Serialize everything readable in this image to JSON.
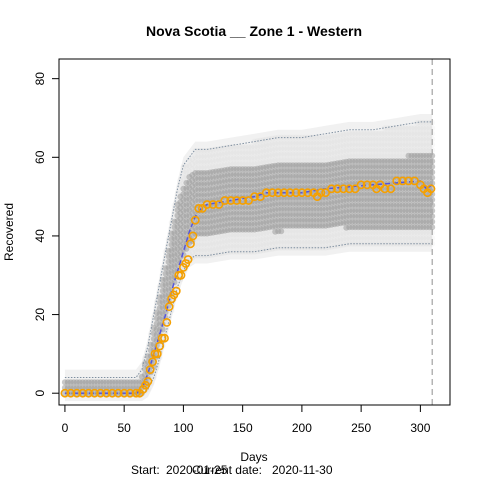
{
  "chart_data": {
    "type": "scatter",
    "title": "Nova Scotia __ Zone 1 - Western",
    "xlabel": "Days",
    "ylabel": "Recovered",
    "footer": {
      "start_label": "Start:",
      "start_date": "2020-01-25",
      "current_label": "Current date:",
      "current_date": "2020-11-30"
    },
    "xlim": [
      -5,
      325
    ],
    "ylim": [
      -3,
      85
    ],
    "x_ticks": [
      0,
      50,
      100,
      150,
      200,
      250,
      300
    ],
    "y_ticks": [
      0,
      20,
      40,
      60,
      80
    ],
    "current_day": 310,
    "colors": {
      "simulation_band": "#9a9a9a",
      "envelope": "#7f8fa0",
      "observed": "#f5a000",
      "model_fit": "#5555dd",
      "current_marker": "#aaaaaa"
    },
    "series": [
      {
        "role": "upper-envelope",
        "x": [
          0,
          60,
          65,
          70,
          75,
          80,
          85,
          90,
          95,
          100,
          105,
          110,
          120,
          140,
          160,
          180,
          200,
          220,
          240,
          260,
          280,
          300,
          310
        ],
        "y": [
          4,
          4,
          6,
          12,
          20,
          28,
          36,
          44,
          52,
          58,
          60,
          62,
          62,
          63,
          64,
          65,
          65,
          66,
          67,
          67,
          68,
          69,
          69
        ]
      },
      {
        "role": "band-top",
        "x": [
          0,
          60,
          65,
          70,
          75,
          80,
          85,
          90,
          95,
          100,
          105,
          110,
          120,
          140,
          160,
          180,
          200,
          220,
          240,
          260,
          280,
          300,
          310
        ],
        "y": [
          3,
          3,
          5,
          10,
          17,
          25,
          33,
          41,
          48,
          53,
          56,
          57,
          57,
          58,
          58,
          59,
          59,
          59,
          60,
          60,
          60,
          61,
          61
        ]
      },
      {
        "role": "band-bottom",
        "x": [
          0,
          60,
          65,
          70,
          75,
          80,
          85,
          90,
          95,
          100,
          105,
          110,
          120,
          140,
          160,
          180,
          200,
          220,
          240,
          260,
          280,
          300,
          310
        ],
        "y": [
          0,
          0,
          0,
          2,
          6,
          12,
          18,
          24,
          30,
          34,
          37,
          40,
          40,
          41,
          41,
          41,
          42,
          42,
          42,
          42,
          42,
          42,
          42
        ]
      },
      {
        "role": "lower-envelope",
        "x": [
          0,
          60,
          65,
          70,
          75,
          80,
          85,
          90,
          95,
          100,
          105,
          110,
          120,
          140,
          160,
          180,
          200,
          220,
          240,
          260,
          280,
          300,
          310
        ],
        "y": [
          0,
          0,
          0,
          1,
          4,
          9,
          15,
          21,
          27,
          31,
          34,
          35,
          35,
          36,
          36,
          37,
          37,
          37,
          38,
          38,
          38,
          38,
          38
        ]
      },
      {
        "role": "model-fit",
        "x": [
          0,
          60,
          65,
          70,
          75,
          80,
          85,
          90,
          95,
          100,
          105,
          110,
          115,
          120,
          130,
          140,
          150,
          160,
          170,
          200,
          220,
          240,
          260,
          280,
          300,
          305,
          310
        ],
        "y": [
          0,
          0,
          1,
          5,
          10,
          15,
          20,
          26,
          31,
          36,
          41,
          45,
          47,
          48,
          48.5,
          49,
          49.5,
          50,
          51,
          51,
          52,
          52.5,
          53,
          53.5,
          54,
          52,
          53
        ]
      },
      {
        "role": "observed",
        "x": [
          0,
          5,
          10,
          15,
          20,
          25,
          30,
          35,
          40,
          45,
          50,
          55,
          60,
          63,
          66,
          68,
          70,
          72,
          74,
          76,
          78,
          80,
          82,
          84,
          86,
          88,
          90,
          92,
          94,
          96,
          98,
          100,
          102,
          104,
          106,
          108,
          110,
          113,
          116,
          120,
          125,
          130,
          135,
          140,
          145,
          150,
          155,
          160,
          165,
          170,
          175,
          180,
          185,
          190,
          195,
          200,
          205,
          210,
          213,
          216,
          220,
          225,
          230,
          235,
          240,
          245,
          250,
          255,
          260,
          263,
          266,
          270,
          275,
          280,
          285,
          290,
          295,
          300,
          303,
          306,
          309
        ],
        "y": [
          0,
          0,
          0,
          0,
          0,
          0,
          0,
          0,
          0,
          0,
          0,
          0,
          0,
          0,
          1,
          2,
          3,
          6,
          8,
          10,
          10,
          12,
          14,
          14,
          18,
          22,
          24,
          25,
          26,
          30,
          30,
          32,
          33,
          34,
          38,
          40,
          44,
          47,
          47,
          48,
          48,
          48,
          49,
          49,
          49,
          49,
          49,
          50,
          50,
          51,
          51,
          51,
          51,
          51,
          51,
          51,
          51,
          51,
          50,
          51,
          51,
          52,
          52,
          52,
          52,
          52,
          53,
          53,
          53,
          52,
          53,
          52,
          52,
          54,
          54,
          54,
          54,
          53,
          52,
          51,
          52
        ]
      }
    ]
  }
}
